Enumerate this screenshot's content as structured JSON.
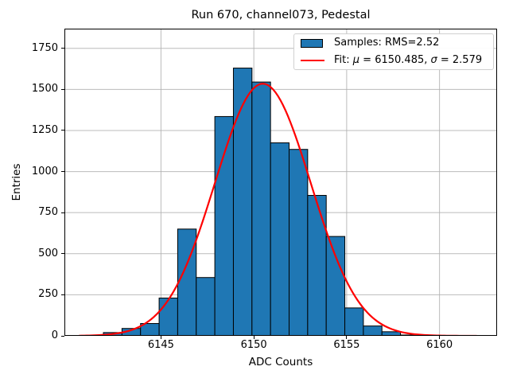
{
  "chart_data": {
    "type": "bar",
    "subtype": "histogram-with-gaussian-fit",
    "title": "Run 670, channel073, Pedestal",
    "xlabel": "ADC Counts",
    "ylabel": "Entries",
    "xlim": [
      6139.8,
      6163.1
    ],
    "ylim": [
      0,
      1870
    ],
    "x_ticks": [
      6145,
      6150,
      6155,
      6160
    ],
    "y_ticks": [
      0,
      250,
      500,
      750,
      1000,
      1250,
      1500,
      1750
    ],
    "grid": true,
    "grid_color": "#b0b0b0",
    "bin_edges": [
      6141.9,
      6142.9,
      6143.9,
      6144.9,
      6145.9,
      6146.9,
      6147.9,
      6148.9,
      6149.9,
      6150.9,
      6151.9,
      6152.9,
      6153.9,
      6154.9,
      6155.9,
      6156.9,
      6157.9,
      6158.9
    ],
    "counts": [
      20,
      45,
      75,
      230,
      650,
      355,
      1335,
      1630,
      1545,
      1175,
      1135,
      855,
      605,
      170,
      60,
      25,
      5
    ],
    "bar_color": "#1f77b4",
    "bar_edge_color": "#000000",
    "fit": {
      "mu": 6150.485,
      "sigma": 2.579,
      "amplitude": 1535,
      "color": "#ff0000",
      "x_start": 6140.6,
      "x_end": 6162.0
    },
    "legend": {
      "position": "upper right",
      "entries": [
        {
          "type": "patch",
          "color": "#1f77b4",
          "label": "Samples: RMS=2.52"
        },
        {
          "type": "line",
          "color": "#ff0000",
          "label": "Fit: μ = 6150.485, σ = 2.579"
        }
      ]
    }
  }
}
